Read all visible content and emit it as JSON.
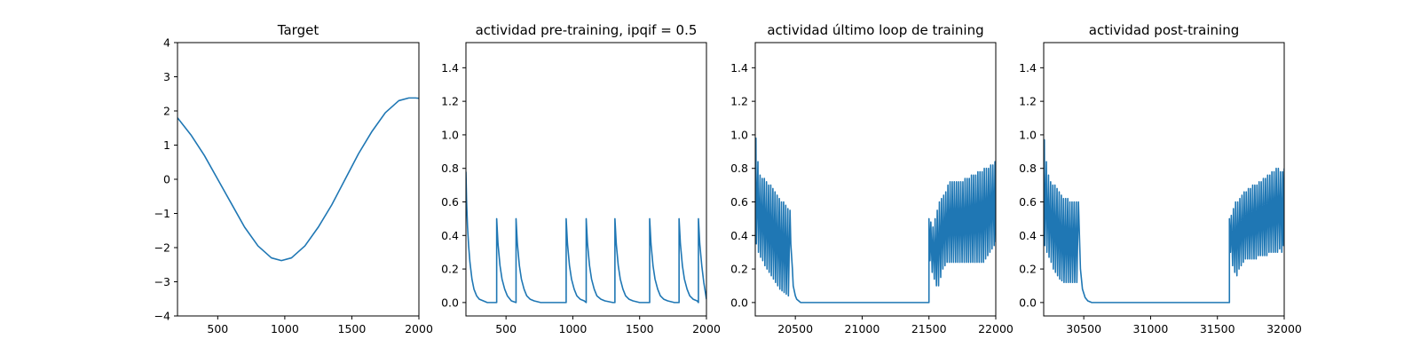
{
  "figure": {
    "background": "#ffffff",
    "line_color": "#1f77b4"
  },
  "chart_data": [
    {
      "type": "line",
      "title": "Target",
      "xlabel": "",
      "ylabel": "",
      "xlim": [
        200,
        2000
      ],
      "ylim": [
        -4,
        4
      ],
      "xticks": [
        500,
        1000,
        1500,
        2000
      ],
      "yticks": [
        -4,
        -3,
        -2,
        -1,
        0,
        1,
        2,
        3,
        4
      ],
      "grid": false,
      "series": [
        {
          "color": "#1f77b4",
          "x": [
            200,
            300,
            400,
            500,
            600,
            700,
            800,
            900,
            975,
            1050,
            1150,
            1250,
            1350,
            1450,
            1550,
            1650,
            1750,
            1850,
            1925,
            1975,
            2000
          ],
          "y": [
            1.8,
            1.3,
            0.7,
            0.0,
            -0.7,
            -1.4,
            -1.95,
            -2.3,
            -2.38,
            -2.3,
            -1.95,
            -1.4,
            -0.75,
            0.0,
            0.75,
            1.4,
            1.95,
            2.3,
            2.38,
            2.38,
            2.37
          ]
        }
      ]
    },
    {
      "type": "line",
      "title": "actividad pre-training, ipqif = 0.5",
      "xlabel": "",
      "ylabel": "",
      "xlim": [
        200,
        2000
      ],
      "ylim": [
        -0.08,
        1.55
      ],
      "xticks": [
        500,
        1000,
        1500,
        2000
      ],
      "yticks": [
        0.0,
        0.2,
        0.4,
        0.6,
        0.8,
        1.0,
        1.2,
        1.4
      ],
      "grid": false,
      "series": [
        {
          "color": "#1f77b4",
          "x": [
            200,
            205,
            212,
            220,
            230,
            245,
            260,
            280,
            300,
            330,
            360,
            430,
            430,
            440,
            455,
            470,
            490,
            510,
            540,
            575,
            575,
            585,
            600,
            615,
            635,
            655,
            680,
            710,
            760,
            950,
            950,
            960,
            975,
            990,
            1010,
            1030,
            1055,
            1085,
            1100,
            1100,
            1110,
            1125,
            1140,
            1160,
            1180,
            1210,
            1240,
            1300,
            1315,
            1315,
            1325,
            1340,
            1355,
            1375,
            1395,
            1420,
            1450,
            1500,
            1575,
            1575,
            1585,
            1600,
            1615,
            1635,
            1655,
            1680,
            1710,
            1760,
            1795,
            1795,
            1805,
            1820,
            1835,
            1855,
            1875,
            1900,
            1930,
            1940,
            1940,
            1950,
            1965,
            1980,
            2000
          ],
          "y": [
            0.78,
            0.6,
            0.45,
            0.34,
            0.24,
            0.14,
            0.08,
            0.04,
            0.02,
            0.01,
            0.0,
            0.0,
            0.5,
            0.35,
            0.22,
            0.14,
            0.08,
            0.04,
            0.01,
            0.0,
            0.5,
            0.35,
            0.22,
            0.14,
            0.08,
            0.04,
            0.02,
            0.01,
            0.0,
            0.0,
            0.5,
            0.35,
            0.22,
            0.14,
            0.08,
            0.04,
            0.02,
            0.01,
            0.0,
            0.5,
            0.35,
            0.22,
            0.14,
            0.08,
            0.04,
            0.02,
            0.01,
            0.0,
            0.0,
            0.5,
            0.35,
            0.22,
            0.14,
            0.08,
            0.04,
            0.02,
            0.01,
            0.0,
            0.0,
            0.5,
            0.35,
            0.22,
            0.14,
            0.08,
            0.04,
            0.02,
            0.01,
            0.0,
            0.0,
            0.5,
            0.35,
            0.22,
            0.14,
            0.08,
            0.04,
            0.02,
            0.01,
            0.0,
            0.5,
            0.35,
            0.22,
            0.12,
            0.02
          ]
        }
      ]
    },
    {
      "type": "line",
      "title": "actividad último loop de training",
      "xlabel": "",
      "ylabel": "",
      "xlim": [
        20200,
        22000
      ],
      "ylim": [
        -0.08,
        1.55
      ],
      "xticks": [
        20500,
        21000,
        21500,
        22000
      ],
      "yticks": [
        0.0,
        0.2,
        0.4,
        0.6,
        0.8,
        1.0,
        1.2,
        1.4
      ],
      "grid": false,
      "series": [
        {
          "color": "#1f77b4",
          "x": [
            20200,
            20205,
            20208,
            20220,
            20224,
            20236,
            20240,
            20252,
            20256,
            20268,
            20272,
            20284,
            20288,
            20300,
            20304,
            20316,
            20320,
            20332,
            20336,
            20348,
            20352,
            20364,
            20368,
            20380,
            20384,
            20396,
            20400,
            20412,
            20416,
            20428,
            20432,
            20444,
            20448,
            20460,
            20466,
            20478,
            20484,
            20500,
            20510,
            20525,
            20540,
            20560,
            20580,
            20620,
            21500,
            21500,
            21508,
            21514,
            21524,
            21530,
            21540,
            21546,
            21556,
            21562,
            21572,
            21578,
            21588,
            21594,
            21604,
            21610,
            21620,
            21626,
            21636,
            21642,
            21652,
            21658,
            21668,
            21674,
            21684,
            21690,
            21700,
            21706,
            21716,
            21722,
            21732,
            21738,
            21748,
            21754,
            21764,
            21770,
            21780,
            21786,
            21796,
            21802,
            21812,
            21818,
            21828,
            21834,
            21844,
            21850,
            21860,
            21866,
            21876,
            21882,
            21892,
            21898,
            21908,
            21914,
            21924,
            21930,
            21940,
            21946,
            21956,
            21962,
            21972,
            21978,
            21988,
            21994,
            22000
          ],
          "y": [
            0.48,
            0.98,
            0.35,
            0.84,
            0.3,
            0.76,
            0.27,
            0.74,
            0.25,
            0.74,
            0.22,
            0.72,
            0.2,
            0.7,
            0.18,
            0.7,
            0.16,
            0.68,
            0.14,
            0.66,
            0.12,
            0.64,
            0.1,
            0.62,
            0.08,
            0.6,
            0.07,
            0.6,
            0.06,
            0.58,
            0.05,
            0.56,
            0.04,
            0.55,
            0.35,
            0.2,
            0.1,
            0.04,
            0.02,
            0.01,
            0.0,
            0.0,
            0.0,
            0.0,
            0.0,
            0.5,
            0.25,
            0.48,
            0.18,
            0.45,
            0.14,
            0.5,
            0.1,
            0.55,
            0.1,
            0.6,
            0.15,
            0.62,
            0.2,
            0.64,
            0.22,
            0.66,
            0.24,
            0.7,
            0.24,
            0.72,
            0.24,
            0.72,
            0.24,
            0.72,
            0.24,
            0.72,
            0.24,
            0.72,
            0.24,
            0.72,
            0.24,
            0.72,
            0.24,
            0.74,
            0.24,
            0.74,
            0.24,
            0.74,
            0.24,
            0.76,
            0.24,
            0.76,
            0.24,
            0.76,
            0.24,
            0.78,
            0.24,
            0.78,
            0.24,
            0.78,
            0.24,
            0.8,
            0.26,
            0.8,
            0.28,
            0.8,
            0.3,
            0.82,
            0.32,
            0.82,
            0.34,
            0.84,
            0.36
          ]
        }
      ]
    },
    {
      "type": "line",
      "title": "actividad post-training",
      "xlabel": "",
      "ylabel": "",
      "xlim": [
        30200,
        32000
      ],
      "ylim": [
        -0.08,
        1.55
      ],
      "xticks": [
        30500,
        31000,
        31500,
        32000
      ],
      "yticks": [
        0.0,
        0.2,
        0.4,
        0.6,
        0.8,
        1.0,
        1.2,
        1.4
      ],
      "grid": false,
      "series": [
        {
          "color": "#1f77b4",
          "x": [
            30200,
            30205,
            30208,
            30220,
            30224,
            30236,
            30240,
            30252,
            30256,
            30268,
            30272,
            30284,
            30288,
            30300,
            30304,
            30316,
            30320,
            30332,
            30336,
            30348,
            30352,
            30364,
            30368,
            30380,
            30384,
            30396,
            30400,
            30412,
            30416,
            30428,
            30432,
            30444,
            30448,
            30460,
            30475,
            30490,
            30510,
            30530,
            30560,
            30600,
            31590,
            31590,
            31598,
            31604,
            31614,
            31620,
            31630,
            31636,
            31646,
            31652,
            31662,
            31668,
            31678,
            31684,
            31694,
            31700,
            31710,
            31716,
            31726,
            31732,
            31742,
            31748,
            31758,
            31764,
            31774,
            31780,
            31790,
            31796,
            31806,
            31812,
            31822,
            31828,
            31838,
            31844,
            31854,
            31860,
            31870,
            31876,
            31886,
            31892,
            31902,
            31908,
            31918,
            31924,
            31934,
            31940,
            31950,
            31956,
            31966,
            31972,
            31982,
            31988,
            31994,
            32000
          ],
          "y": [
            0.48,
            0.97,
            0.34,
            0.84,
            0.3,
            0.76,
            0.27,
            0.72,
            0.24,
            0.7,
            0.2,
            0.7,
            0.18,
            0.68,
            0.16,
            0.66,
            0.14,
            0.64,
            0.13,
            0.62,
            0.12,
            0.62,
            0.12,
            0.62,
            0.12,
            0.6,
            0.12,
            0.6,
            0.12,
            0.6,
            0.12,
            0.6,
            0.12,
            0.6,
            0.2,
            0.08,
            0.03,
            0.01,
            0.0,
            0.0,
            0.0,
            0.5,
            0.3,
            0.52,
            0.22,
            0.56,
            0.18,
            0.6,
            0.16,
            0.6,
            0.2,
            0.62,
            0.22,
            0.64,
            0.24,
            0.66,
            0.26,
            0.66,
            0.26,
            0.68,
            0.26,
            0.68,
            0.26,
            0.7,
            0.26,
            0.7,
            0.26,
            0.7,
            0.28,
            0.72,
            0.28,
            0.72,
            0.28,
            0.74,
            0.28,
            0.74,
            0.28,
            0.76,
            0.3,
            0.76,
            0.3,
            0.78,
            0.3,
            0.78,
            0.3,
            0.8,
            0.3,
            0.8,
            0.32,
            0.78,
            0.3,
            0.78,
            0.34,
            0.8
          ]
        }
      ]
    }
  ]
}
